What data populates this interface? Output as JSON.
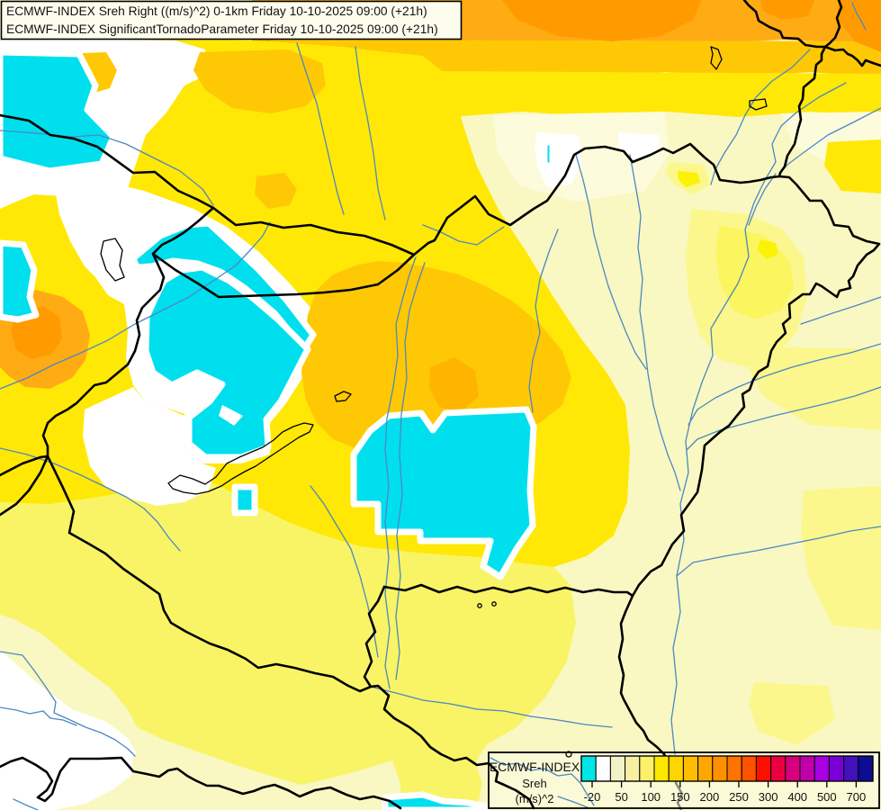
{
  "header": {
    "line1": "ECMWF-INDEX Sreh Right ((m/s)^2) 0-1km Friday 10-10-2025 09:00 (+21h)",
    "line2": "ECMWF-INDEX SignificantTornadoParameter Friday 10-10-2025 09:00 (+21h)"
  },
  "legend": {
    "title": "ECMWF-INDEX",
    "parameter": "Sreh",
    "units": "(m/s)^2",
    "tick_labels": [
      "-20",
      "50",
      "100",
      "150",
      "200",
      "250",
      "300",
      "400",
      "500",
      "700"
    ],
    "cell_colors": [
      "#00e6e6",
      "#ffffff",
      "#f2f2c6",
      "#f7f0a0",
      "#fbef6b",
      "#ffe800",
      "#ffd400",
      "#ffbd00",
      "#ffa700",
      "#ff9100",
      "#ff7400",
      "#ff5200",
      "#ff0f00",
      "#ea0040",
      "#d6007e",
      "#bf00a8",
      "#a800e0",
      "#7a00d8",
      "#4410bb",
      "#0d0d94"
    ]
  },
  "palette": {
    "bg": "#f9f8c2",
    "paler": "#fcfbdc",
    "light": "#fbf78c",
    "light2": "#fbf55f",
    "lightcore": "#fcf203",
    "mid": "#f8f466",
    "bright": "#ffe805",
    "yo": "#ffc805",
    "orange": "#ffab14",
    "deeporange": "#ff9a00",
    "core": "#ffb400",
    "cyan": "#00dfee",
    "white": "#ffffff",
    "river": "#4d87c3",
    "border": "#000000",
    "grayline": "#8a8a8a",
    "legendbg": "#fbfad6",
    "titlebg": "#fdfdee"
  }
}
